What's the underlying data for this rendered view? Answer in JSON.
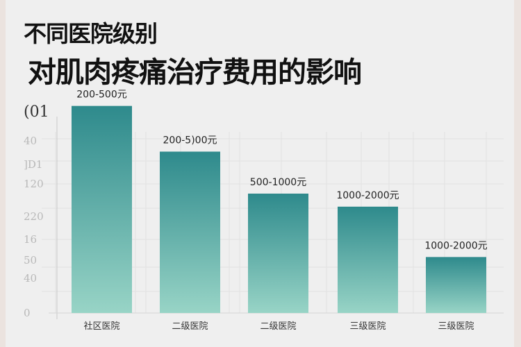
{
  "chart_data": {
    "type": "bar",
    "title_lines": [
      "不同医院级别",
      "对肌肉疼痛治疗费用的影响"
    ],
    "categories": [
      "社区医院",
      "二级医院",
      "二级医院",
      "三级医院",
      "三级医院"
    ],
    "values": [
      222,
      173,
      128,
      114,
      60
    ],
    "data_labels": [
      "200-500元",
      "200-5)00元",
      "500-1000元",
      "1000-2000元",
      "1000-2000元"
    ],
    "y_tick_labels": [
      "(01",
      "40",
      "]D1",
      "120",
      "220",
      "16",
      "50",
      "40",
      "0"
    ],
    "ylim": [
      0,
      250
    ],
    "grid": true,
    "bar_color_top": "#2e8a8c",
    "bar_color_bottom": "#98d4c6"
  }
}
